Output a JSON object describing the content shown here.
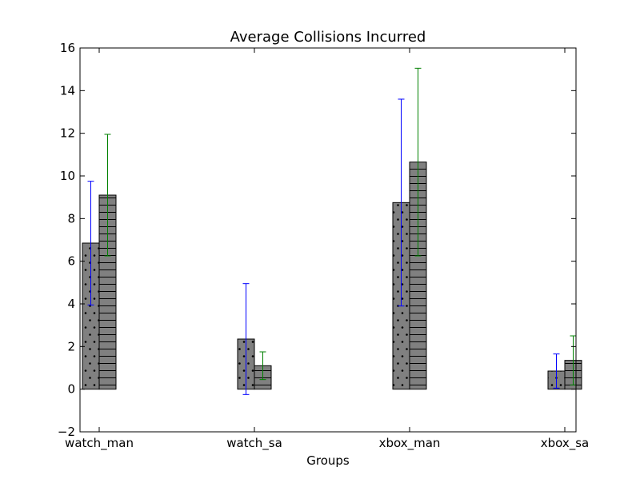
{
  "chart_data": {
    "type": "bar",
    "title": "Average Collisions Incurred",
    "xlabel": "Groups",
    "ylabel": "",
    "ylim": [
      -2,
      16
    ],
    "yticks": [
      -2,
      0,
      2,
      4,
      6,
      8,
      10,
      12,
      14,
      16
    ],
    "ytick_labels": [
      "−2",
      "0",
      "2",
      "4",
      "6",
      "8",
      "10",
      "12",
      "14",
      "16"
    ],
    "categories": [
      "watch_man",
      "watch_sa",
      "xbox_man",
      "xbox_sa"
    ],
    "grid": false,
    "legend": "none",
    "series": [
      {
        "values": [
          6.85,
          2.35,
          8.75,
          0.85
        ],
        "errors": [
          2.9,
          2.6,
          4.85,
          0.8
        ],
        "bar_color": "#808080",
        "hatch": "dots",
        "error_color": "#0000ff"
      },
      {
        "values": [
          9.1,
          1.1,
          10.65,
          1.35
        ],
        "errors": [
          2.85,
          0.65,
          4.4,
          1.15
        ],
        "bar_color": "#808080",
        "hatch": "horizontal-lines",
        "error_color": "#008000"
      }
    ]
  }
}
